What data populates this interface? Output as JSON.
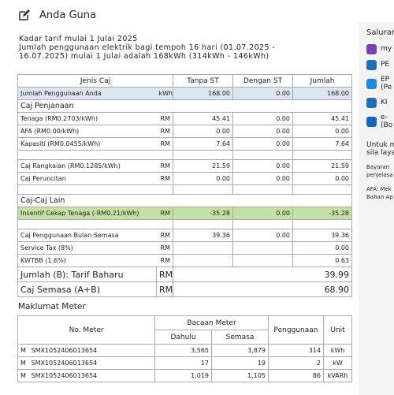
{
  "header": {
    "title": "Anda Guna"
  },
  "intro": {
    "line1": "Kadar tarif mulai 1 Julai 2025",
    "lines": [
      "Jumlah penggunaan elektrik bagi tempoh 16 hari (01.07.2025 -",
      "16.07.2025) mulai 1 Julai adalah 168kWh (314kWh - 146kWh)"
    ]
  },
  "charges": {
    "columns": [
      "Jenis Caj",
      "Tanpa ST",
      "Dengan ST",
      "Jumlah"
    ],
    "rows": [
      [
        "Jumlah Penggunaan Anda",
        "kWh",
        "168.00",
        "0.00",
        "168.00"
      ],
      [
        "Caj Penjanaan"
      ],
      [
        "Tenaga (RM0.2703/kWh)",
        "RM",
        "45.41",
        "0.00",
        "45.41"
      ],
      [
        "AFA (RM0.00/kWh)",
        "RM",
        "0.00",
        "0.00",
        "0.00"
      ],
      [
        "Kapasiti (RM0.0455/kWh)",
        "RM",
        "7.64",
        "0.00",
        "7.64"
      ],
      [
        "Caj Rangkaian (RM0.1285/kWh)",
        "RM",
        "21.59",
        "0.00",
        "21.59"
      ],
      [
        "Caj Peruncitan",
        "RM",
        "0.00",
        "0.00",
        "0.00"
      ],
      [
        "Caj-Caj Lain"
      ],
      [
        "Insentif Cekap Tenaga (-RM0.21/kWh)",
        "RM",
        "-35.28",
        "0.00",
        "-35.28"
      ],
      [
        "Caj Penggunaan Bulan Semasa",
        "RM",
        "39.36",
        "0.00",
        "39.36"
      ],
      [
        "Service Tax (8%)",
        "RM",
        null,
        null,
        "0.00"
      ],
      [
        "KWTBB (1.6%)",
        "RM",
        null,
        null,
        "0.63"
      ],
      [
        "Jumlah (B): Tarif Baharu",
        "RM",
        "39.99"
      ],
      [
        "Caj Semasa (A+B)",
        "RM",
        "68.90"
      ]
    ]
  },
  "meter": {
    "title": "Maklumat Meter",
    "no": "No. Meter",
    "reading": "Bacaan Meter",
    "previous": "Dahulu",
    "current": "Semasa",
    "usage": "Penggunaan",
    "unit": "Unit",
    "rows": [
      [
        "M",
        "SMX1052406013654",
        "3,565",
        "3,879",
        "314",
        "kWh"
      ],
      [
        "M",
        "SMX1052406013654",
        "17",
        "19",
        "2",
        "kW"
      ],
      [
        "M",
        "SMX1052406013654",
        "1,019",
        "1,105",
        "86",
        "kVARh"
      ]
    ]
  },
  "sidebar": {
    "title": "Saluran",
    "items": [
      [
        "my"
      ],
      [
        "PE"
      ],
      [
        "EP",
        "(Pe"
      ],
      [
        "KI"
      ],
      [
        "e-",
        "(Bo"
      ]
    ],
    "notes": [
      [
        "Untuk m",
        "sila layan"
      ],
      [
        "Bayaran",
        "penjelasa"
      ],
      [
        "AFA: Mek",
        "Bahan Ap"
      ]
    ]
  }
}
